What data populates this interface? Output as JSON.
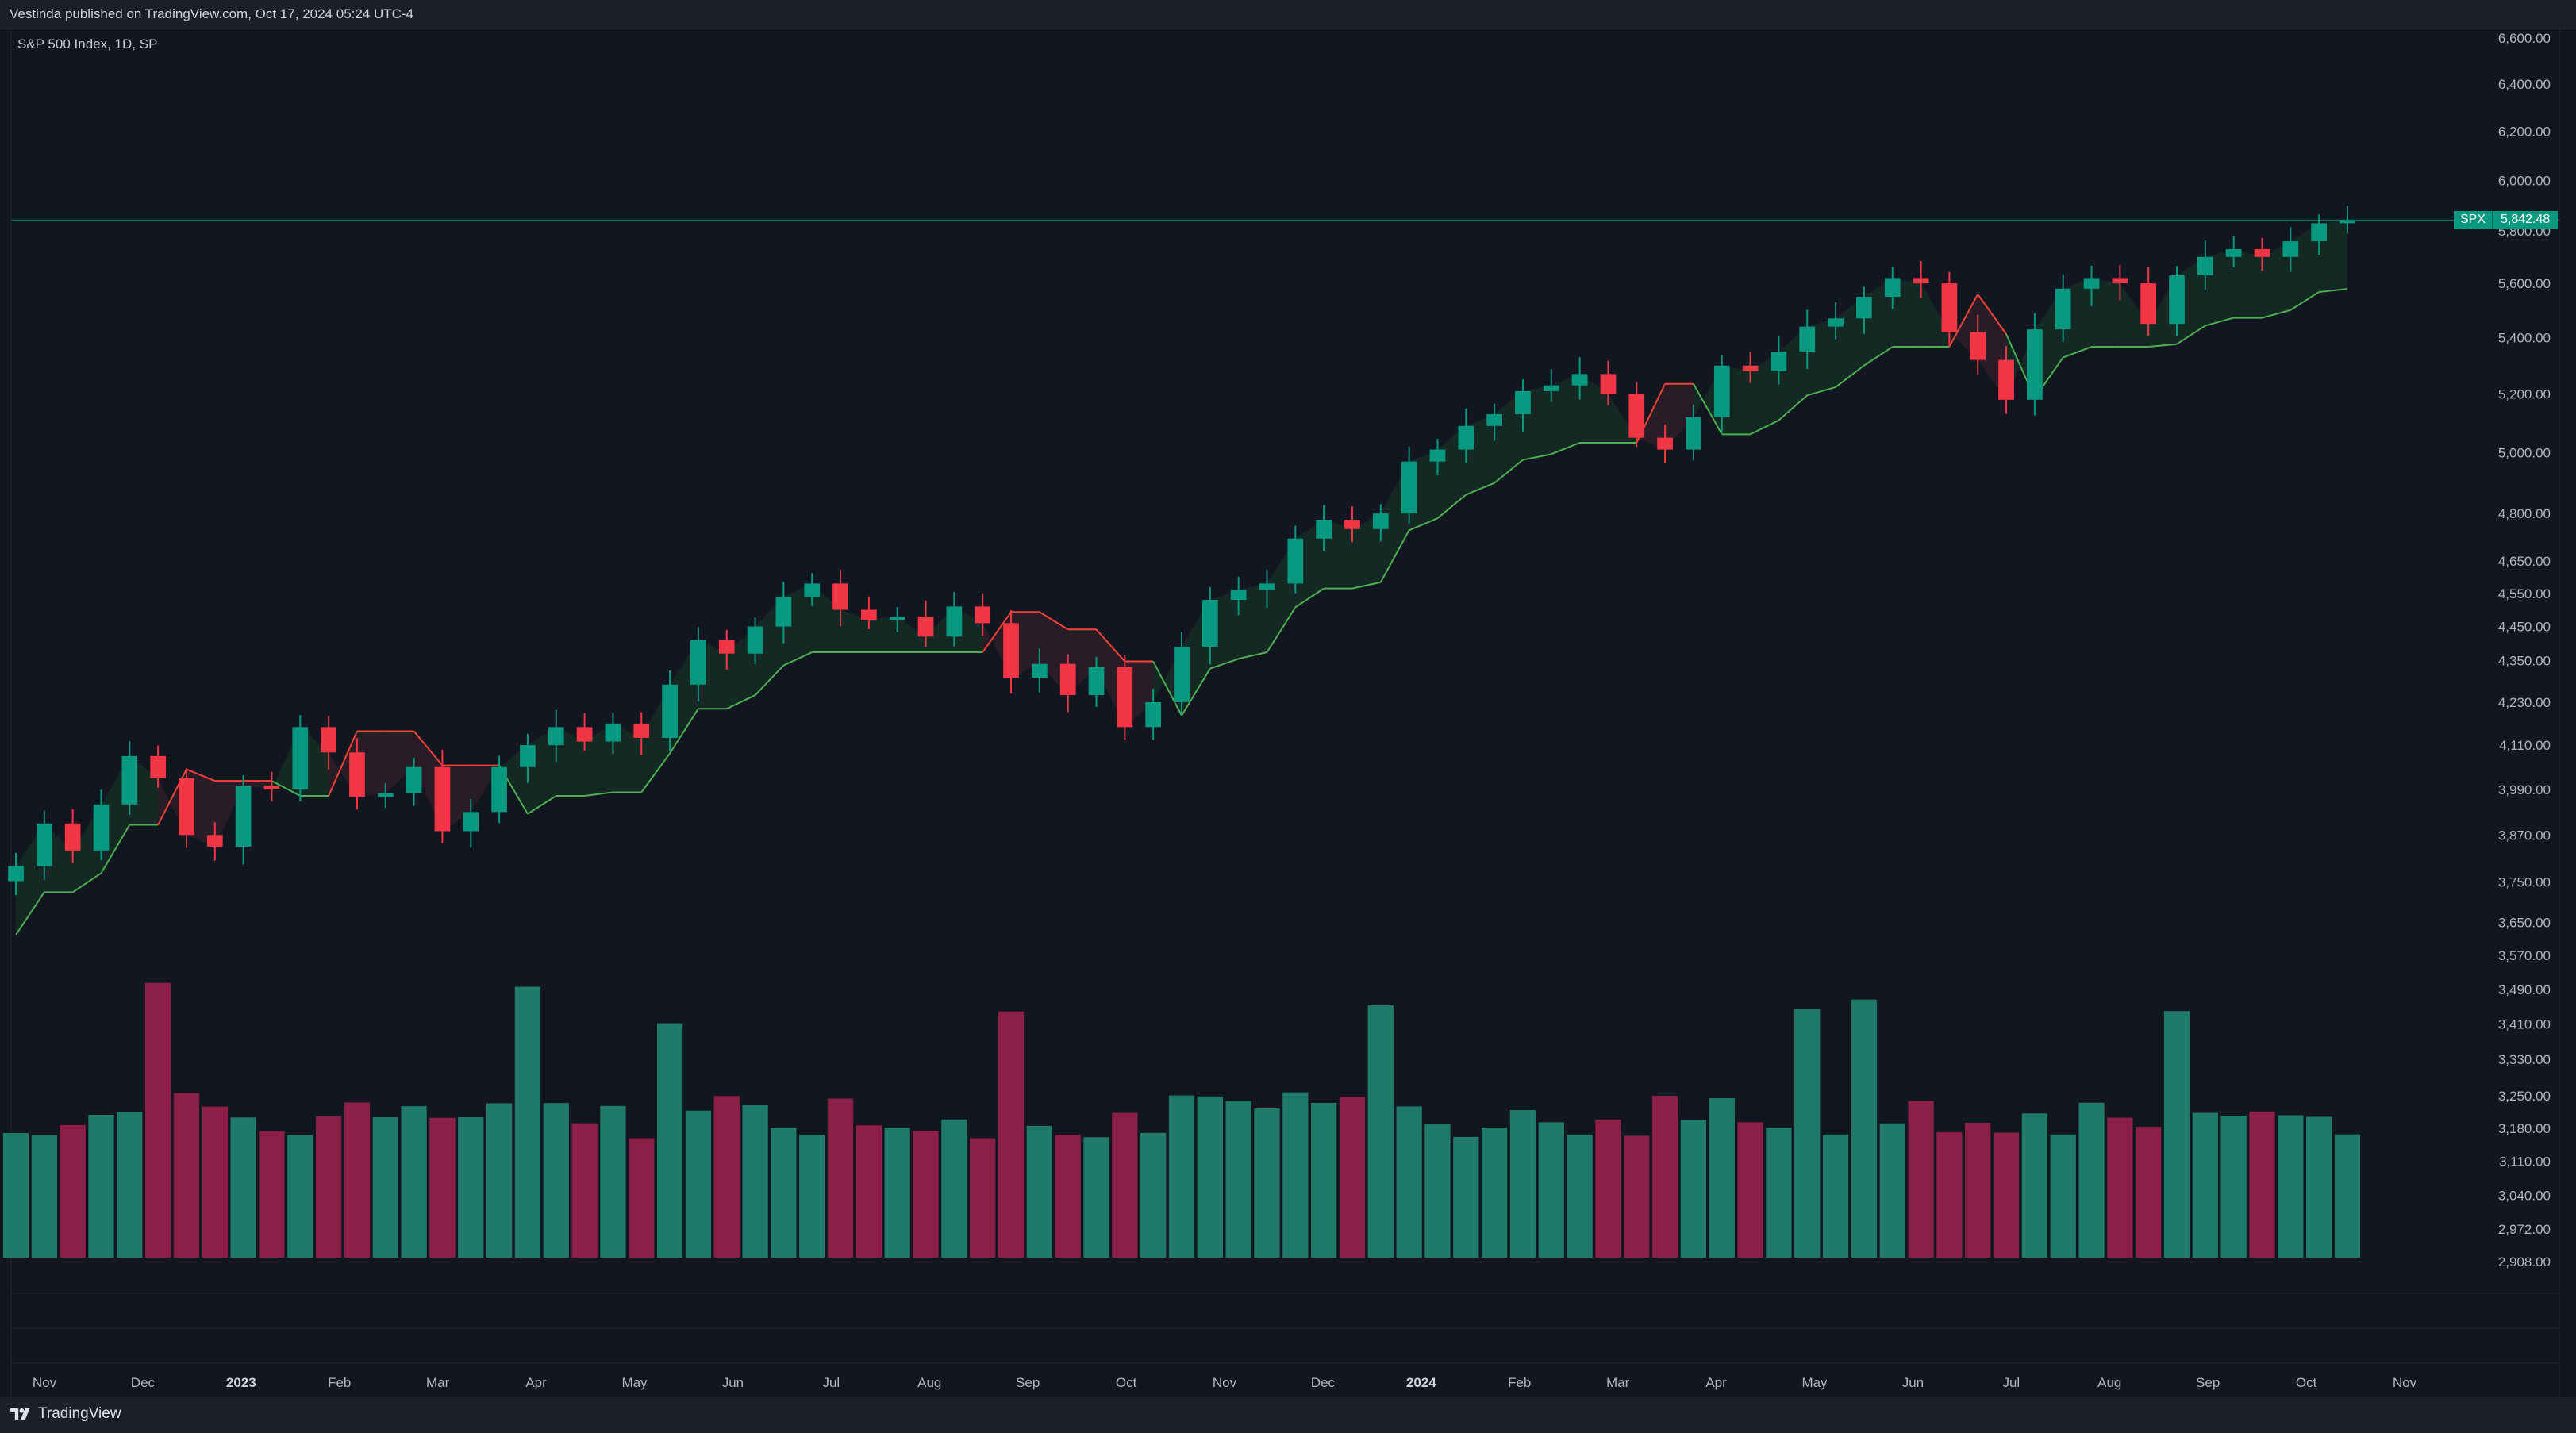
{
  "header": {
    "published_text": "Vestinda published on TradingView.com, Oct 17, 2024 05:24 UTC-4"
  },
  "symbol": {
    "title": "S&P 500 Index, 1D, SP"
  },
  "price_tag": {
    "symbol": "SPX",
    "value": "5,842.48"
  },
  "footer": {
    "brand": "TradingView"
  },
  "colors": {
    "background": "#121620",
    "up": "#089981",
    "down": "#f23645",
    "volume_up": "#1f7a6a",
    "volume_down": "#8c1f47",
    "trail_up": "#4caf50",
    "trail_down": "#f44336",
    "axis_text": "#b2b5be"
  },
  "chart_data": {
    "type": "candlestick",
    "title": "S&P 500 Index, 1D, SP",
    "y_scale": "log",
    "ylim": [
      2908,
      6600
    ],
    "y_ticks": [
      "6,600.00",
      "6,400.00",
      "6,200.00",
      "6,000.00",
      "5,800.00",
      "5,600.00",
      "5,400.00",
      "5,200.00",
      "5,000.00",
      "4,800.00",
      "4,650.00",
      "4,550.00",
      "4,450.00",
      "4,350.00",
      "4,230.00",
      "4,110.00",
      "3,990.00",
      "3,870.00",
      "3,750.00",
      "3,650.00",
      "3,570.00",
      "3,490.00",
      "3,410.00",
      "3,330.00",
      "3,250.00",
      "3,180.00",
      "3,110.00",
      "3,040.00",
      "2,972.00",
      "2,908.00"
    ],
    "x_ticks": [
      "Nov",
      "Dec",
      "2023",
      "Feb",
      "Mar",
      "Apr",
      "May",
      "Jun",
      "Jul",
      "Aug",
      "Sep",
      "Oct",
      "Nov",
      "Dec",
      "2024",
      "Feb",
      "Mar",
      "Apr",
      "May",
      "Jun",
      "Jul",
      "Aug",
      "Sep",
      "Oct",
      "Nov"
    ],
    "x_ticks_bold": [
      "2023",
      "2024"
    ],
    "last_price": 5842.48,
    "series": [
      {
        "name": "SPX",
        "closes": [
          3790,
          3900,
          3830,
          3950,
          4080,
          4020,
          3870,
          3840,
          4000,
          3990,
          4160,
          4090,
          3970,
          3980,
          4050,
          3880,
          3930,
          4050,
          4110,
          4160,
          4120,
          4170,
          4130,
          4280,
          4410,
          4370,
          4450,
          4540,
          4580,
          4500,
          4470,
          4480,
          4420,
          4510,
          4460,
          4300,
          4340,
          4250,
          4330,
          4160,
          4230,
          4390,
          4530,
          4560,
          4580,
          4720,
          4780,
          4750,
          4800,
          4970,
          5010,
          5090,
          5130,
          5210,
          5230,
          5270,
          5200,
          5050,
          5010,
          5120,
          5300,
          5280,
          5350,
          5440,
          5470,
          5550,
          5620,
          5600,
          5420,
          5320,
          5180,
          5430,
          5580,
          5620,
          5600,
          5450,
          5630,
          5700,
          5730,
          5700,
          5760,
          5830,
          5842
        ]
      }
    ]
  }
}
